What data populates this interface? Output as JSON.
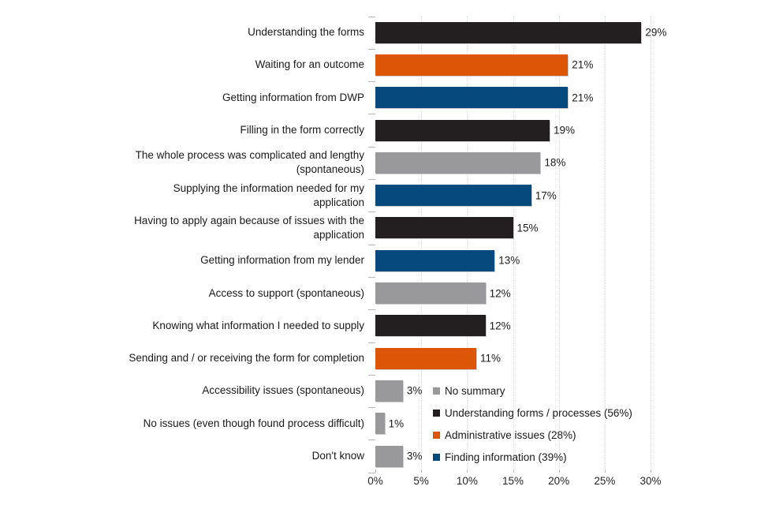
{
  "chart_data": {
    "type": "bar",
    "orientation": "horizontal",
    "title": "",
    "xlabel": "",
    "ylabel": "",
    "xlim": [
      0,
      30
    ],
    "x_tick_values": [
      0,
      5,
      10,
      15,
      20,
      25,
      30
    ],
    "x_tick_labels": [
      "0%",
      "5%",
      "10%",
      "15%",
      "20%",
      "25%",
      "30%"
    ],
    "grid": "vertical-dotted",
    "legend_position": "inside-bottom-right",
    "series_colors": {
      "no_summary": "#99999b",
      "understanding": "#231f20",
      "administrative": "#dd5506",
      "finding": "#064a7d"
    },
    "bars": [
      {
        "label": "Understanding the forms",
        "value": 29,
        "value_label": "29%",
        "series": "understanding"
      },
      {
        "label": "Waiting for an outcome",
        "value": 21,
        "value_label": "21%",
        "series": "administrative"
      },
      {
        "label": "Getting information from DWP",
        "value": 21,
        "value_label": "21%",
        "series": "finding"
      },
      {
        "label": "Filling in the form correctly",
        "value": 19,
        "value_label": "19%",
        "series": "understanding"
      },
      {
        "label": "The whole process was complicated and lengthy\n(spontaneous)",
        "value": 18,
        "value_label": "18%",
        "series": "no_summary"
      },
      {
        "label": "Supplying the information needed for my\napplication",
        "value": 17,
        "value_label": "17%",
        "series": "finding"
      },
      {
        "label": "Having to apply again because of issues with the\napplication",
        "value": 15,
        "value_label": "15%",
        "series": "understanding"
      },
      {
        "label": "Getting information from my lender",
        "value": 13,
        "value_label": "13%",
        "series": "finding"
      },
      {
        "label": "Access to support (spontaneous)",
        "value": 12,
        "value_label": "12%",
        "series": "no_summary"
      },
      {
        "label": "Knowing what information I needed to supply",
        "value": 12,
        "value_label": "12%",
        "series": "understanding"
      },
      {
        "label": "Sending and / or receiving the form for completion",
        "value": 11,
        "value_label": "11%",
        "series": "administrative"
      },
      {
        "label": "Accessibility issues (spontaneous)",
        "value": 3,
        "value_label": "3%",
        "series": "no_summary"
      },
      {
        "label": "No issues (even though found process difficult)",
        "value": 1,
        "value_label": "1%",
        "series": "no_summary"
      },
      {
        "label": "Don't know",
        "value": 3,
        "value_label": "3%",
        "series": "no_summary"
      }
    ],
    "legend": [
      {
        "label": "No summary",
        "series": "no_summary"
      },
      {
        "label": "Understanding forms / processes (56%)",
        "series": "understanding"
      },
      {
        "label": "Administrative issues (28%)",
        "series": "administrative"
      },
      {
        "label": "Finding information (39%)",
        "series": "finding"
      }
    ]
  }
}
